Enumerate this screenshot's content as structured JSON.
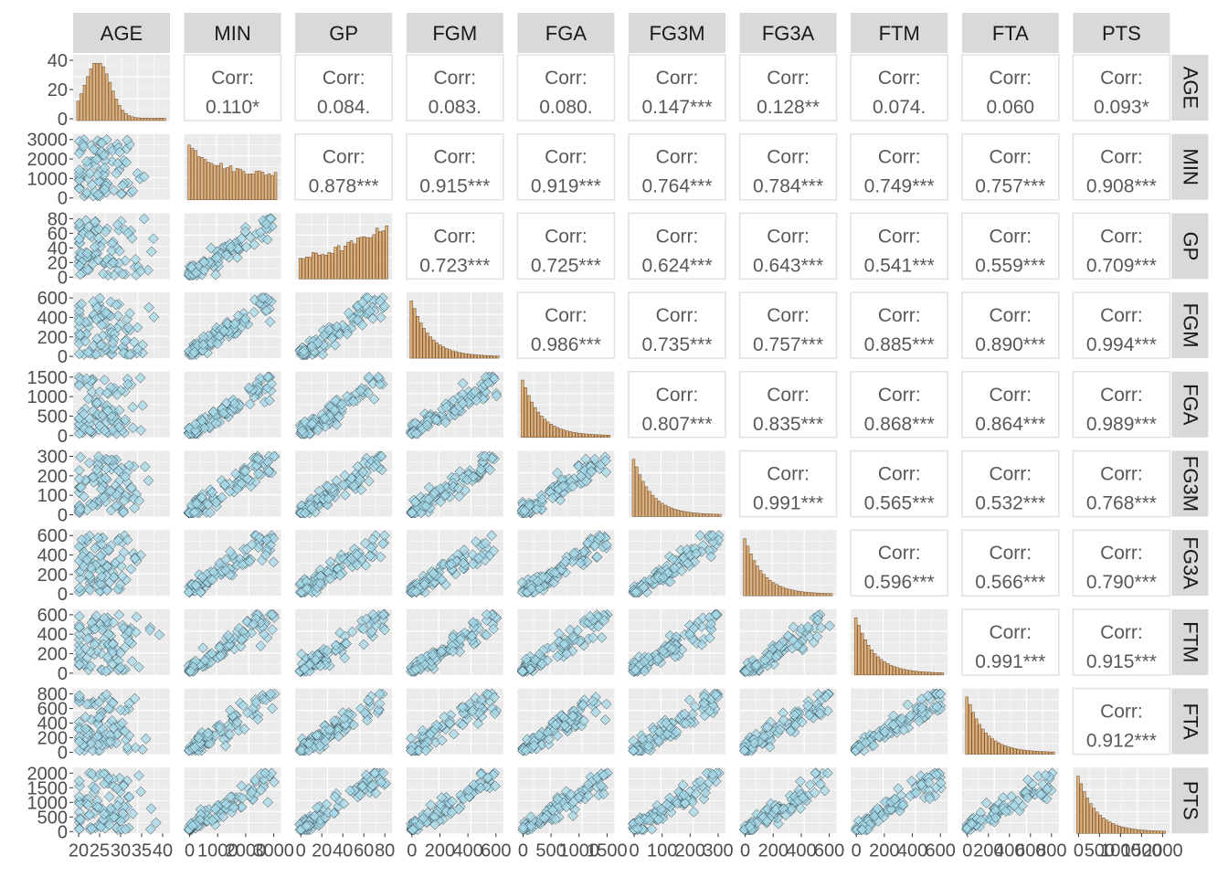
{
  "chart_data": {
    "type": "scatter-matrix",
    "variables": [
      "AGE",
      "MIN",
      "GP",
      "FGM",
      "FGA",
      "FG3M",
      "FG3A",
      "FTM",
      "FTA",
      "PTS"
    ],
    "corr_label": "Corr:",
    "correlations": [
      {
        "row": "AGE",
        "col": "MIN",
        "value": "0.110*"
      },
      {
        "row": "AGE",
        "col": "GP",
        "value": "0.084."
      },
      {
        "row": "AGE",
        "col": "FGM",
        "value": "0.083."
      },
      {
        "row": "AGE",
        "col": "FGA",
        "value": "0.080."
      },
      {
        "row": "AGE",
        "col": "FG3M",
        "value": "0.147***"
      },
      {
        "row": "AGE",
        "col": "FG3A",
        "value": "0.128**"
      },
      {
        "row": "AGE",
        "col": "FTM",
        "value": "0.074."
      },
      {
        "row": "AGE",
        "col": "FTA",
        "value": "0.060"
      },
      {
        "row": "AGE",
        "col": "PTS",
        "value": "0.093*"
      },
      {
        "row": "MIN",
        "col": "GP",
        "value": "0.878***"
      },
      {
        "row": "MIN",
        "col": "FGM",
        "value": "0.915***"
      },
      {
        "row": "MIN",
        "col": "FGA",
        "value": "0.919***"
      },
      {
        "row": "MIN",
        "col": "FG3M",
        "value": "0.764***"
      },
      {
        "row": "MIN",
        "col": "FG3A",
        "value": "0.784***"
      },
      {
        "row": "MIN",
        "col": "FTM",
        "value": "0.749***"
      },
      {
        "row": "MIN",
        "col": "FTA",
        "value": "0.757***"
      },
      {
        "row": "MIN",
        "col": "PTS",
        "value": "0.908***"
      },
      {
        "row": "GP",
        "col": "FGM",
        "value": "0.723***"
      },
      {
        "row": "GP",
        "col": "FGA",
        "value": "0.725***"
      },
      {
        "row": "GP",
        "col": "FG3M",
        "value": "0.624***"
      },
      {
        "row": "GP",
        "col": "FG3A",
        "value": "0.643***"
      },
      {
        "row": "GP",
        "col": "FTM",
        "value": "0.541***"
      },
      {
        "row": "GP",
        "col": "FTA",
        "value": "0.559***"
      },
      {
        "row": "GP",
        "col": "PTS",
        "value": "0.709***"
      },
      {
        "row": "FGM",
        "col": "FGA",
        "value": "0.986***"
      },
      {
        "row": "FGM",
        "col": "FG3M",
        "value": "0.735***"
      },
      {
        "row": "FGM",
        "col": "FG3A",
        "value": "0.757***"
      },
      {
        "row": "FGM",
        "col": "FTM",
        "value": "0.885***"
      },
      {
        "row": "FGM",
        "col": "FTA",
        "value": "0.890***"
      },
      {
        "row": "FGM",
        "col": "PTS",
        "value": "0.994***"
      },
      {
        "row": "FGA",
        "col": "FG3M",
        "value": "0.807***"
      },
      {
        "row": "FGA",
        "col": "FG3A",
        "value": "0.835***"
      },
      {
        "row": "FGA",
        "col": "FTM",
        "value": "0.868***"
      },
      {
        "row": "FGA",
        "col": "FTA",
        "value": "0.864***"
      },
      {
        "row": "FGA",
        "col": "PTS",
        "value": "0.989***"
      },
      {
        "row": "FG3M",
        "col": "FG3A",
        "value": "0.991***"
      },
      {
        "row": "FG3M",
        "col": "FTM",
        "value": "0.565***"
      },
      {
        "row": "FG3M",
        "col": "FTA",
        "value": "0.532***"
      },
      {
        "row": "FG3M",
        "col": "PTS",
        "value": "0.768***"
      },
      {
        "row": "FG3A",
        "col": "FTM",
        "value": "0.596***"
      },
      {
        "row": "FG3A",
        "col": "FTA",
        "value": "0.566***"
      },
      {
        "row": "FG3A",
        "col": "PTS",
        "value": "0.790***"
      },
      {
        "row": "FTM",
        "col": "FTA",
        "value": "0.991***"
      },
      {
        "row": "FTM",
        "col": "PTS",
        "value": "0.915***"
      },
      {
        "row": "FTA",
        "col": "PTS",
        "value": "0.912***"
      }
    ],
    "y_axis_ticks": [
      {
        "row": "AGE",
        "ticks": [
          "0",
          "20",
          "40"
        ]
      },
      {
        "row": "MIN",
        "ticks": [
          "0",
          "1000",
          "2000",
          "3000"
        ]
      },
      {
        "row": "GP",
        "ticks": [
          "0",
          "20",
          "40",
          "60",
          "80"
        ]
      },
      {
        "row": "FGM",
        "ticks": [
          "0",
          "200",
          "400",
          "600"
        ]
      },
      {
        "row": "FGA",
        "ticks": [
          "0",
          "500",
          "1000",
          "1500"
        ]
      },
      {
        "row": "FG3M",
        "ticks": [
          "0",
          "100",
          "200",
          "300"
        ]
      },
      {
        "row": "FG3A",
        "ticks": [
          "0",
          "200",
          "400",
          "600"
        ]
      },
      {
        "row": "FTM",
        "ticks": [
          "0",
          "200",
          "400",
          "600"
        ]
      },
      {
        "row": "FTA",
        "ticks": [
          "0",
          "200",
          "400",
          "600",
          "800"
        ]
      },
      {
        "row": "PTS",
        "ticks": [
          "0",
          "500",
          "1000",
          "1500",
          "2000"
        ]
      }
    ],
    "x_axis_ticks": [
      {
        "col": "AGE",
        "ticks": [
          "20",
          "25",
          "30",
          "35",
          "40"
        ]
      },
      {
        "col": "MIN",
        "ticks": [
          "0",
          "1000",
          "2000",
          "3000"
        ]
      },
      {
        "col": "GP",
        "ticks": [
          "0",
          "20",
          "40",
          "60",
          "80"
        ]
      },
      {
        "col": "FGM",
        "ticks": [
          "0",
          "200",
          "400",
          "600"
        ]
      },
      {
        "col": "FGA",
        "ticks": [
          "0",
          "500",
          "1000",
          "1500"
        ]
      },
      {
        "col": "FG3M",
        "ticks": [
          "0",
          "100",
          "200",
          "300"
        ]
      },
      {
        "col": "FG3A",
        "ticks": [
          "0",
          "200",
          "400",
          "600"
        ]
      },
      {
        "col": "FTM",
        "ticks": [
          "0",
          "200",
          "400",
          "600"
        ]
      },
      {
        "col": "FTA",
        "ticks": [
          "0",
          "200",
          "400",
          "600",
          "800"
        ]
      },
      {
        "col": "PTS",
        "ticks": [
          "0",
          "500",
          "1000",
          "1500",
          "2000"
        ]
      }
    ],
    "histogram_color": "#e0b07a",
    "point_color": "#a6d8e8",
    "panel_background": "#ebebeb",
    "strip_background": "#d9d9d9",
    "grid": true
  }
}
